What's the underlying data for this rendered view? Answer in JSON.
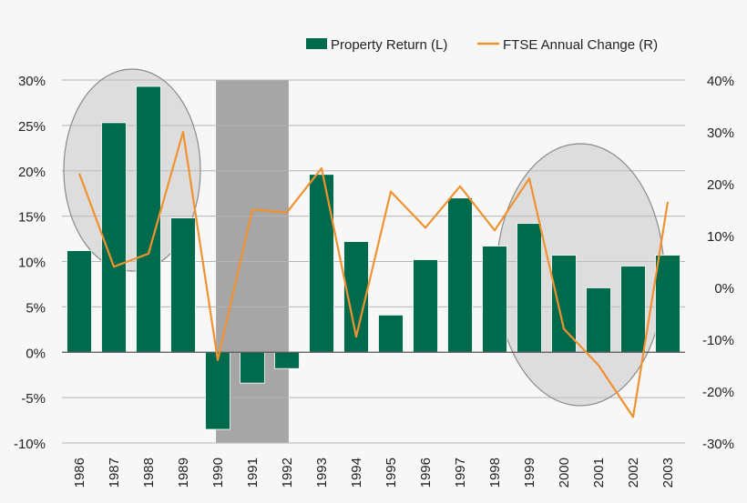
{
  "chart_data": {
    "type": "bar+line",
    "categories": [
      "1986",
      "1987",
      "1988",
      "1989",
      "1990",
      "1991",
      "1992",
      "1993",
      "1994",
      "1995",
      "1996",
      "1997",
      "1998",
      "1999",
      "2000",
      "2001",
      "2002",
      "2003"
    ],
    "series": [
      {
        "name": "Property Return (L)",
        "type": "bar",
        "axis": "left",
        "color": "#006a4d",
        "values": [
          11.2,
          25.3,
          29.3,
          14.8,
          -8.5,
          -3.4,
          -1.8,
          19.6,
          12.2,
          4.1,
          10.2,
          17.0,
          11.7,
          14.2,
          10.7,
          7.1,
          9.5,
          10.7
        ]
      },
      {
        "name": "FTSE Annual Change (R)",
        "type": "line",
        "axis": "right",
        "color": "#f0922f",
        "values": [
          22.0,
          4.0,
          6.5,
          30.0,
          -14.0,
          15.0,
          14.5,
          23.0,
          -9.5,
          18.5,
          11.5,
          19.5,
          11.0,
          21.0,
          -8.0,
          -15.0,
          -25.0,
          16.5
        ]
      }
    ],
    "left_axis": {
      "ylim": [
        -10,
        30
      ],
      "ticks": [
        -10,
        -5,
        0,
        5,
        10,
        15,
        20,
        25,
        30
      ],
      "tick_labels": [
        "-10%",
        "-5%",
        "0%",
        "5%",
        "10%",
        "15%",
        "20%",
        "25%",
        "30%"
      ]
    },
    "right_axis": {
      "ylim": [
        -30,
        40
      ],
      "ticks": [
        -30,
        -20,
        -10,
        0,
        10,
        20,
        30,
        40
      ],
      "tick_labels": [
        "-30%",
        "-20%",
        "-10%",
        "0%",
        "10%",
        "20%",
        "30%",
        "40%"
      ]
    },
    "shaded_period": {
      "from": "1990",
      "to": "1992",
      "color": "#a6a6a6"
    },
    "highlight_ellipses": [
      {
        "from": "1986",
        "to": "1989"
      },
      {
        "from": "1999",
        "to": "2002"
      }
    ],
    "grid": true,
    "legend_position": "top-right",
    "title": "",
    "xlabel": "",
    "ylabel": ""
  },
  "legend": {
    "bar_label": "Property Return (L)",
    "line_label": "FTSE Annual Change (R)"
  }
}
